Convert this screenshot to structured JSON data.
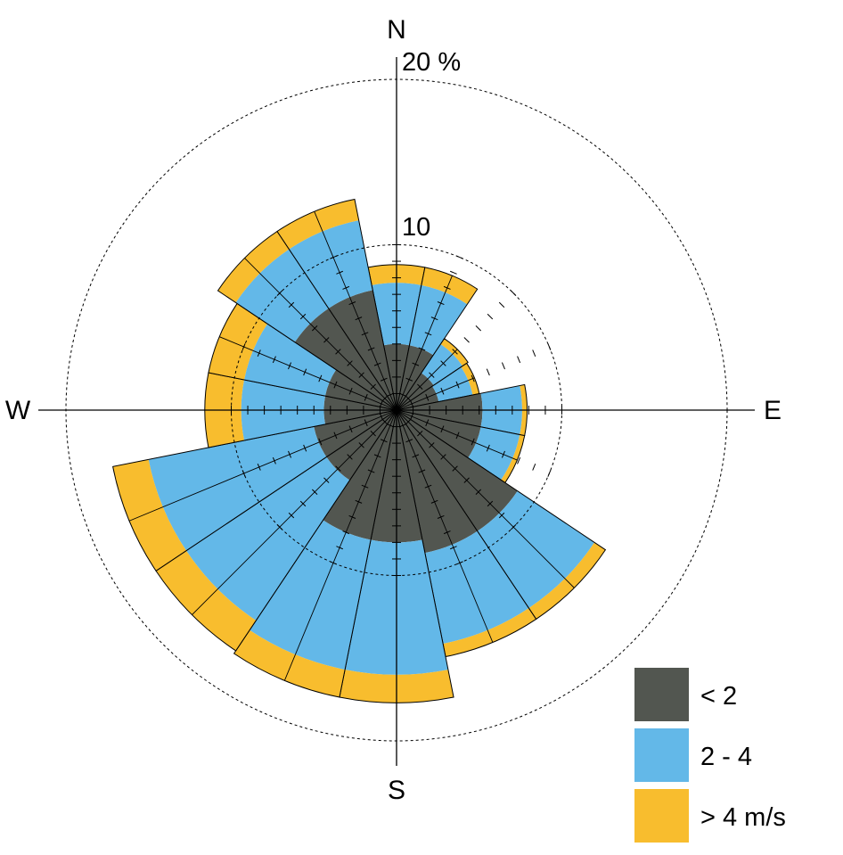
{
  "chart_data": {
    "type": "wind-rose",
    "title": "",
    "directions": [
      "N",
      "NNE",
      "NE",
      "ENE",
      "E",
      "ESE",
      "SE",
      "SSE",
      "S",
      "SSW",
      "SW",
      "WSW",
      "W",
      "WNW",
      "NW",
      "NNW"
    ],
    "compass_labels": {
      "n": "N",
      "e": "E",
      "s": "S",
      "w": "W"
    },
    "ring_labels": {
      "inner": "10",
      "outer": "20 %"
    },
    "rlim": [
      0,
      20
    ],
    "rings": [
      10,
      20
    ],
    "tick_step": 1,
    "tick_max": 10,
    "legend_position": "bottom-right",
    "series": [
      {
        "name": "< 2",
        "color": "#525650",
        "values": [
          4.0,
          4.0,
          2.7,
          2.6,
          5.2,
          5.2,
          8.8,
          8.8,
          8.0,
          8.0,
          5.1,
          5.1,
          4.4,
          4.4,
          7.4,
          7.4
        ]
      },
      {
        "name": "2 - 4",
        "color": "#63b8e8",
        "values": [
          3.7,
          3.7,
          2.1,
          2.1,
          2.4,
          2.4,
          5.6,
          5.6,
          8.0,
          8.0,
          10.2,
          10.2,
          5.0,
          5.0,
          4.3,
          4.3
        ]
      },
      {
        "name": "> 4 m/s",
        "color": "#f8bd2e",
        "values": [
          1.1,
          1.1,
          0.4,
          0.4,
          0.3,
          0.3,
          0.8,
          0.8,
          1.7,
          1.7,
          2.2,
          2.2,
          2.2,
          2.2,
          1.3,
          1.3
        ]
      }
    ]
  }
}
